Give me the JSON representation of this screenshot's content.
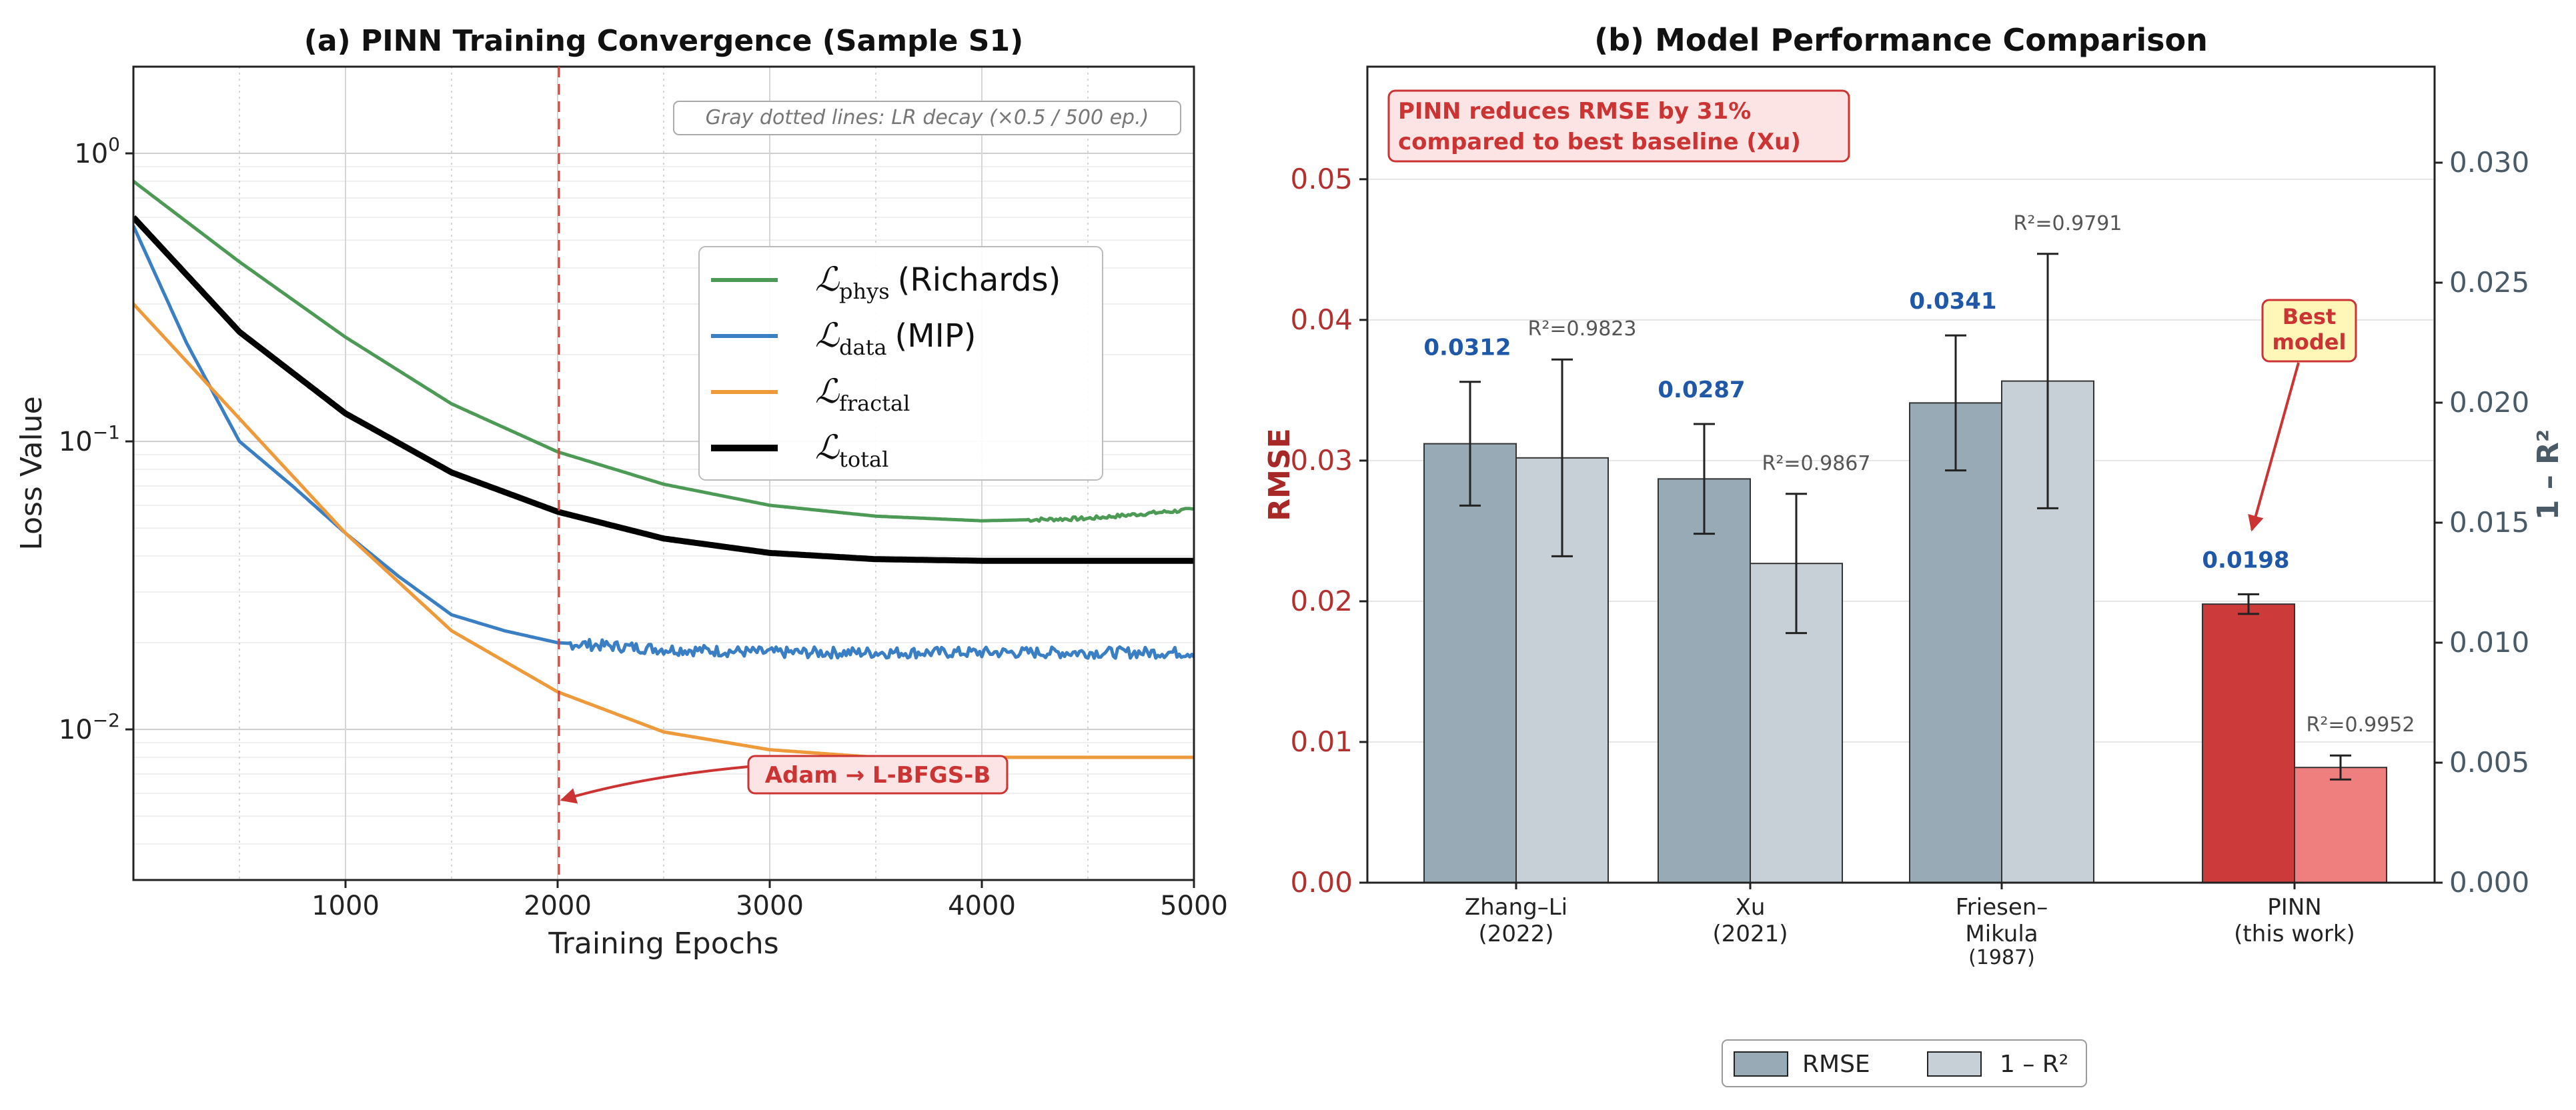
{
  "chart_data": [
    {
      "type": "line",
      "title": "(a) PINN Training Convergence (Sample S1)",
      "xlabel": "Training Epochs",
      "ylabel": "Loss Value",
      "yscale": "log",
      "xlim": [
        0,
        5000
      ],
      "ylim": [
        0.003,
        2.0
      ],
      "xticks": [
        "1000",
        "2000",
        "3000",
        "4000",
        "5000"
      ],
      "yticks": [
        {
          "base": "10",
          "exp": "0"
        },
        {
          "base": "10",
          "exp": "−1"
        },
        {
          "base": "10",
          "exp": "−2"
        }
      ],
      "grid": true,
      "legend_position": "center-right",
      "note": "Gray dotted lines: LR decay (×0.5 / 500 ep.)",
      "annotation": {
        "text": "Adam → L-BFGS-B",
        "x": 2000
      },
      "series": [
        {
          "key": "phys",
          "name": "phys",
          "suffix": "(Richards)",
          "color": "#4c9a55",
          "x": [
            0,
            500,
            1000,
            1500,
            2000,
            2500,
            3000,
            3500,
            4000,
            4500,
            5000
          ],
          "y": [
            0.8,
            0.42,
            0.23,
            0.135,
            0.092,
            0.071,
            0.06,
            0.055,
            0.053,
            0.054,
            0.058
          ]
        },
        {
          "key": "data",
          "name": "data",
          "suffix": "(MIP)",
          "color": "#3a7fc4",
          "x": [
            0,
            250,
            500,
            750,
            1000,
            1250,
            1500,
            1750,
            2000,
            2500,
            3000,
            3500,
            4000,
            4500,
            5000
          ],
          "y": [
            0.56,
            0.22,
            0.1,
            0.07,
            0.048,
            0.034,
            0.025,
            0.022,
            0.02,
            0.019,
            0.0185,
            0.0185,
            0.0185,
            0.0185,
            0.0185
          ]
        },
        {
          "key": "fractal",
          "name": "fractal",
          "suffix": "",
          "color": "#ee9a3a",
          "x": [
            0,
            500,
            1000,
            1500,
            2000,
            2500,
            3000,
            3500,
            4000,
            4500,
            5000
          ],
          "y": [
            0.3,
            0.12,
            0.048,
            0.022,
            0.0135,
            0.0098,
            0.0085,
            0.008,
            0.008,
            0.008,
            0.008
          ]
        },
        {
          "key": "total",
          "name": "total",
          "suffix": "",
          "color": "#000000",
          "x": [
            0,
            500,
            1000,
            1500,
            2000,
            2500,
            3000,
            3500,
            4000,
            4500,
            5000
          ],
          "y": [
            0.6,
            0.24,
            0.125,
            0.078,
            0.057,
            0.046,
            0.041,
            0.039,
            0.0385,
            0.0385,
            0.0385
          ]
        }
      ]
    },
    {
      "type": "bar",
      "title": "(b) Model Performance Comparison",
      "ylabel": "RMSE",
      "ylabel_right": "1 – R²",
      "ylim": [
        0,
        0.058
      ],
      "ylim_right": [
        0,
        0.034
      ],
      "yticks": [
        "0.00",
        "0.01",
        "0.02",
        "0.03",
        "0.04",
        "0.05"
      ],
      "yticks_right": [
        "0.000",
        "0.005",
        "0.010",
        "0.015",
        "0.020",
        "0.025",
        "0.030"
      ],
      "categories": [
        {
          "line1": "Zhang–Li",
          "line2": "(2022)"
        },
        {
          "line1": "Xu",
          "line2": "(2021)"
        },
        {
          "line1": "Friesen–",
          "line2": "Mikula",
          "line3": "(1987)"
        },
        {
          "line1": "PINN",
          "line2": "(this work)"
        }
      ],
      "series": [
        {
          "name": "RMSE",
          "color": "#97aab6",
          "values": [
            0.0312,
            0.0287,
            0.0341,
            0.0198
          ],
          "errors": [
            0.0044,
            0.0039,
            0.0048,
            0.0007
          ],
          "labels": [
            "0.0312",
            "0.0287",
            "0.0341",
            "0.0198"
          ]
        },
        {
          "name": "1 – R²",
          "color": "#c7cfd7",
          "values": [
            0.0177,
            0.0133,
            0.0209,
            0.0048
          ],
          "errors": [
            0.0041,
            0.0029,
            0.0053,
            0.0005
          ],
          "labels": [
            "R²=0.9823",
            "R²=0.9867",
            "R²=0.9791",
            "R²=0.9952"
          ]
        }
      ],
      "highlight_colors": [
        "#cc3a3a",
        "#ef7f7f"
      ],
      "callout": {
        "line1": "PINN reduces RMSE by 31%",
        "line2": "compared to best baseline (Xu)"
      },
      "best_label": {
        "line1": "Best",
        "line2": "model"
      },
      "grid": true,
      "legend_position": "bottom"
    }
  ]
}
